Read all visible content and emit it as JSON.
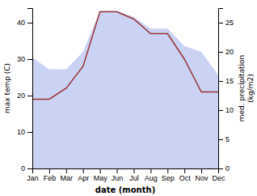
{
  "chart_data": {
    "type": "line",
    "categories": [
      "Jan",
      "Feb",
      "Mar",
      "Apr",
      "May",
      "Jun",
      "Jul",
      "Aug",
      "Sep",
      "Oct",
      "Nov",
      "Dec"
    ],
    "xlabel": "date (month)",
    "ylabel": "max temp (C)",
    "y2label": "med. precipitation\n(kg/m2)",
    "ylim": [
      0,
      44
    ],
    "yticks": [
      0,
      10,
      20,
      30,
      40
    ],
    "y2lim": [
      0,
      27.5
    ],
    "y2ticks": [
      0,
      5,
      10,
      15,
      20,
      25
    ],
    "series": [
      {
        "type": "area",
        "axis": "y2",
        "color": "#b8c4f0",
        "values": [
          19,
          17,
          17,
          20,
          27,
          27,
          26,
          24,
          24,
          21,
          20,
          16
        ]
      },
      {
        "type": "line",
        "color": "#993333",
        "values": [
          19,
          19,
          22,
          28,
          43,
          43,
          41,
          37,
          37,
          30,
          21,
          21
        ]
      }
    ]
  }
}
